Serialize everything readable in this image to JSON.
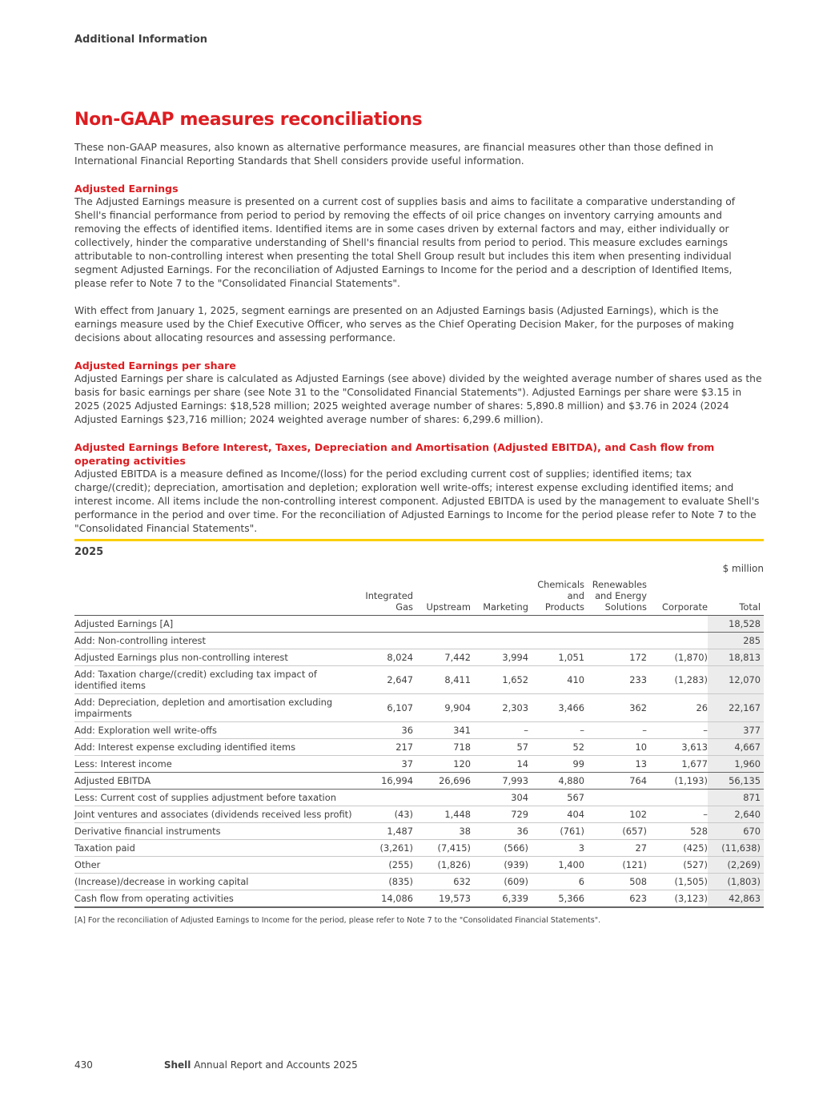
{
  "header": {
    "section": "Additional Information"
  },
  "title": "Non-GAAP measures reconciliations",
  "intro": "These non-GAAP measures, also known as alternative performance measures, are financial measures other than those defined in International Financial Reporting Standards that Shell considers provide useful information.",
  "sections": [
    {
      "heading": "Adjusted Earnings",
      "paragraphs": [
        "The Adjusted Earnings measure is presented on a current cost of supplies basis and aims to facilitate a comparative understanding of Shell's financial performance from period to period by removing the effects of oil price changes on inventory carrying amounts and removing the effects of identified items. Identified items are in some cases driven by external factors and may, either individually or collectively, hinder the comparative understanding of Shell's financial results from period to period. This measure excludes earnings attributable to non-controlling interest when presenting the total Shell Group result but includes this item when presenting individual segment Adjusted Earnings. For the reconciliation of Adjusted Earnings to Income for the period and a description of Identified Items, please refer to Note 7 to the \"Consolidated Financial Statements\".",
        "With effect from January 1, 2025, segment earnings are presented on an Adjusted Earnings basis (Adjusted Earnings), which is the earnings measure used by the Chief Executive Officer, who serves as the Chief Operating Decision Maker, for the purposes of making decisions about allocating resources and assessing performance."
      ]
    },
    {
      "heading": "Adjusted Earnings per share",
      "paragraphs": [
        "Adjusted Earnings per share is calculated as Adjusted Earnings (see above) divided by the weighted average number of shares used as the basis for basic earnings per share (see Note 31 to the \"Consolidated Financial Statements\"). Adjusted Earnings per share were $3.15 in 2025 (2025 Adjusted Earnings: $18,528 million; 2025 weighted average number of shares: 5,890.8 million) and $3.76 in 2024 (2024 Adjusted Earnings $23,716 million; 2024 weighted average number of shares: 6,299.6 million)."
      ]
    },
    {
      "heading": "Adjusted Earnings Before Interest, Taxes, Depreciation and Amortisation (Adjusted EBITDA), and Cash flow from operating activities",
      "paragraphs": [
        "Adjusted EBITDA is a measure defined as Income/(loss) for the period excluding current cost of supplies; identified items; tax charge/(credit); depreciation, amortisation and depletion; exploration well write-offs; interest expense excluding identified items; and interest income. All items include the non-controlling interest component. Adjusted EBITDA is used by the management to evaluate Shell's performance in the period and over time. For the reconciliation of Adjusted Earnings to Income for the period please refer to Note 7 to the \"Consolidated Financial Statements\"."
      ]
    }
  ],
  "table": {
    "year": "2025",
    "unit": "$ million",
    "columns": [
      "",
      "Integrated Gas",
      "Upstream",
      "Marketing",
      "Chemicals and Products",
      "Renewables and Energy Solutions",
      "Corporate",
      "Total"
    ],
    "rows": [
      [
        "Adjusted Earnings [A]",
        "",
        "",
        "",
        "",
        "",
        "",
        "18,528"
      ],
      [
        "Add: Non-controlling interest",
        "",
        "",
        "",
        "",
        "",
        "",
        "285"
      ],
      [
        "Adjusted Earnings plus non-controlling interest",
        "8,024",
        "7,442",
        "3,994",
        "1,051",
        "172",
        "(1,870)",
        "18,813"
      ],
      [
        "Add: Taxation charge/(credit) excluding tax impact of identified items",
        "2,647",
        "8,411",
        "1,652",
        "410",
        "233",
        "(1,283)",
        "12,070"
      ],
      [
        "Add: Depreciation, depletion and amortisation excluding impairments",
        "6,107",
        "9,904",
        "2,303",
        "3,466",
        "362",
        "26",
        "22,167"
      ],
      [
        "Add: Exploration well write-offs",
        "36",
        "341",
        "–",
        "–",
        "–",
        "–",
        "377"
      ],
      [
        "Add: Interest expense excluding identified items",
        "217",
        "718",
        "57",
        "52",
        "10",
        "3,613",
        "4,667"
      ],
      [
        "Less: Interest income",
        "37",
        "120",
        "14",
        "99",
        "13",
        "1,677",
        "1,960"
      ],
      [
        "Adjusted EBITDA",
        "16,994",
        "26,696",
        "7,993",
        "4,880",
        "764",
        "(1,193)",
        "56,135"
      ],
      [
        "Less: Current cost of supplies adjustment before taxation",
        "",
        "",
        "304",
        "567",
        "",
        "",
        "871"
      ],
      [
        "Joint ventures and associates (dividends received less profit)",
        "(43)",
        "1,448",
        "729",
        "404",
        "102",
        "–",
        "2,640"
      ],
      [
        "Derivative financial instruments",
        "1,487",
        "38",
        "36",
        "(761)",
        "(657)",
        "528",
        "670"
      ],
      [
        "Taxation paid",
        "(3,261)",
        "(7,415)",
        "(566)",
        "3",
        "27",
        "(425)",
        "(11,638)"
      ],
      [
        "Other",
        "(255)",
        "(1,826)",
        "(939)",
        "1,400",
        "(121)",
        "(527)",
        "(2,269)"
      ],
      [
        "(Increase)/decrease in working capital",
        "(835)",
        "632",
        "(609)",
        "6",
        "508",
        "(1,505)",
        "(1,803)"
      ],
      [
        "Cash flow from operating activities",
        "14,086",
        "19,573",
        "6,339",
        "5,366",
        "623",
        "(3,123)",
        "42,863"
      ]
    ],
    "footnote": "[A]  For the reconciliation of Adjusted Earnings to Income for the period, please refer to Note 7 to the \"Consolidated Financial Statements\"."
  },
  "footer": {
    "page": "430",
    "brand": "Shell",
    "report": "Annual Report and Accounts 2025"
  },
  "colors": {
    "accent_red": "#dd1d21",
    "rule_yellow": "#fbce07"
  }
}
